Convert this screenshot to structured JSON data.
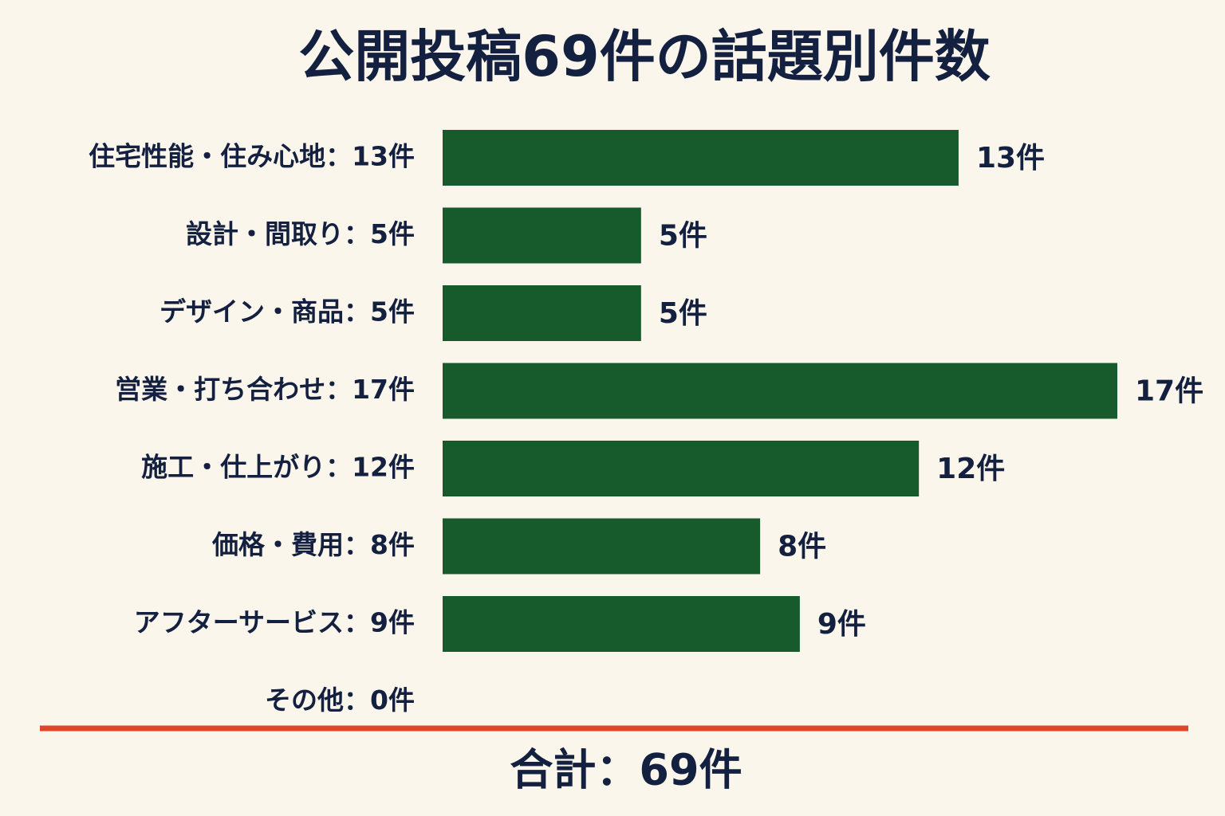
{
  "chart_data": {
    "type": "bar",
    "orientation": "horizontal",
    "title": "公開投稿69件の話題別件数",
    "categories": [
      "住宅性能・住み心地：13件",
      "設計・間取り：5件",
      "デザイン・商品：5件",
      "営業・打ち合わせ：17件",
      "施工・仕上がり：12件",
      "価格・費用：8件",
      "アフターサービス：9件",
      "その他：0件"
    ],
    "values": [
      13,
      5,
      5,
      17,
      12,
      8,
      9,
      0
    ],
    "value_labels": [
      "13件",
      "5件",
      "5件",
      "17件",
      "12件",
      "8件",
      "9件",
      null
    ],
    "color": "#175a2c",
    "xlim": [
      0,
      17
    ],
    "grid": false,
    "total_label": "合計：69件"
  }
}
